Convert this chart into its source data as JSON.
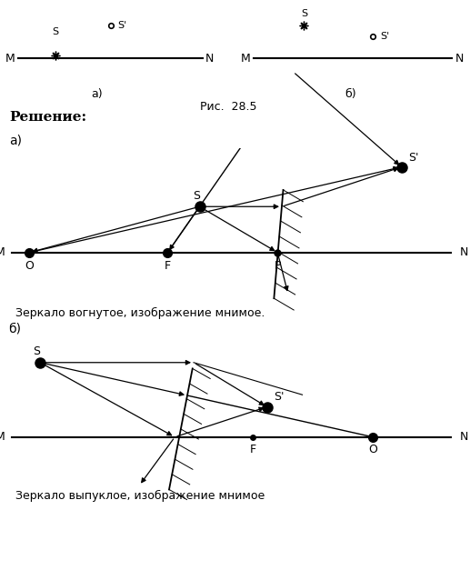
{
  "bg_color": "#ffffff",
  "fig_title": "Рис.  28.5",
  "solution_text": "Решение:",
  "caption_a": "а)",
  "caption_b": "б)",
  "concave_caption": "Зеркало вогнутое, изображение мнимое.",
  "convex_caption": "Зеркало выпуклое, изображение мнимое"
}
